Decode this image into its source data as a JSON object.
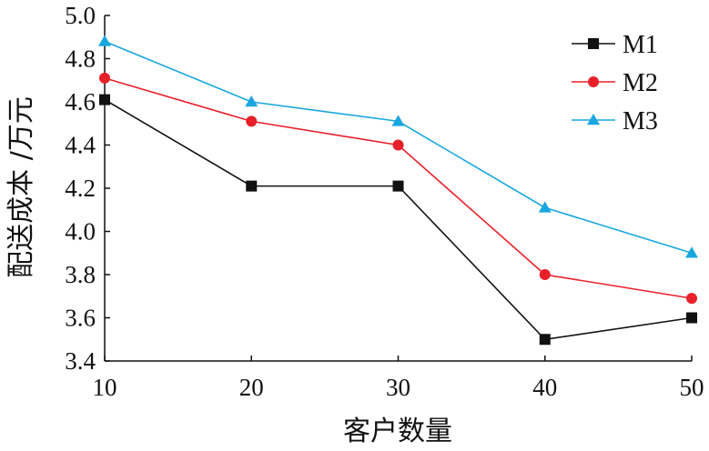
{
  "chart_data": {
    "type": "line",
    "x": [
      10,
      20,
      30,
      40,
      50
    ],
    "xlabel": "客户数量",
    "ylabel": "配送成本 /万元",
    "xlim": [
      10,
      50
    ],
    "ylim": [
      3.4,
      5.0
    ],
    "xticks": [
      "10",
      "20",
      "30",
      "40",
      "50"
    ],
    "yticks": [
      "3.4",
      "3.6",
      "3.8",
      "4.0",
      "4.2",
      "4.4",
      "4.6",
      "4.8",
      "5.0"
    ],
    "grid": false,
    "legend_position": "top-right",
    "series": [
      {
        "name": "M1",
        "values": [
          4.61,
          4.21,
          4.21,
          3.5,
          3.6
        ],
        "color": "#111111",
        "marker": "square"
      },
      {
        "name": "M2",
        "values": [
          4.71,
          4.51,
          4.4,
          3.8,
          3.69
        ],
        "color": "#e8202a",
        "marker": "circle"
      },
      {
        "name": "M3",
        "values": [
          4.88,
          4.6,
          4.51,
          4.11,
          3.9
        ],
        "color": "#1aa7e0",
        "marker": "triangle"
      }
    ]
  }
}
